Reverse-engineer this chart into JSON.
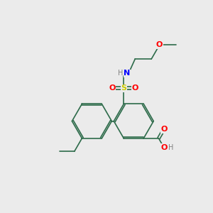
{
  "background_color": "#ebebeb",
  "bond_color": "#2d6b4a",
  "atom_colors": {
    "O": "#ff0000",
    "N": "#0000ff",
    "S": "#cccc00",
    "H": "#808080",
    "C": "#2d6b4a"
  },
  "figsize": [
    3.0,
    3.0
  ],
  "dpi": 100
}
